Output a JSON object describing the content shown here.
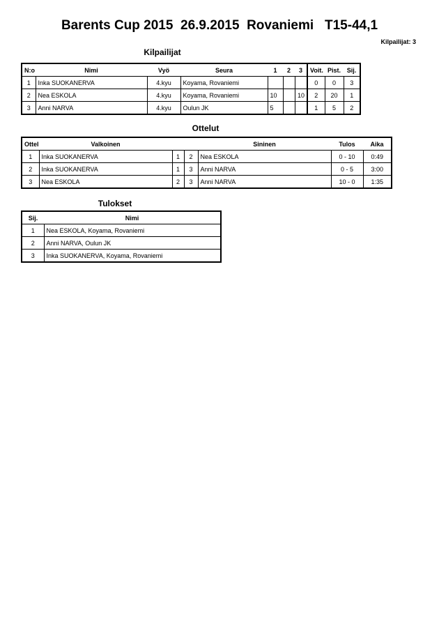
{
  "header": {
    "title": "Barents Cup 2015  26.9.2015  Rovaniemi   T15-44,1",
    "count_label": "Kilpailijat: 3"
  },
  "competitors": {
    "title": "Kilpailijat",
    "columns": [
      "N:o",
      "Nimi",
      "Vyö",
      "Seura",
      "1",
      "2",
      "3",
      "Voit.",
      "Pist.",
      "Sij."
    ],
    "rows": [
      [
        "1",
        "Inka SUOKANERVA",
        "4.kyu",
        "Koyama, Rovaniemi",
        "",
        "",
        "",
        "0",
        "0",
        "3"
      ],
      [
        "2",
        "Nea ESKOLA",
        "4.kyu",
        "Koyama, Rovaniemi",
        "10",
        "",
        "10",
        "2",
        "20",
        "1"
      ],
      [
        "3",
        "Anni NARVA",
        "4.kyu",
        "Oulun JK",
        "5",
        "",
        "",
        "1",
        "5",
        "2"
      ]
    ]
  },
  "matches": {
    "title": "Ottelut",
    "columns": [
      "Ottelu",
      "Valkoinen",
      "",
      "",
      "Sininen",
      "Tulos",
      "Aika"
    ],
    "rows": [
      [
        "1",
        "Inka SUOKANERVA",
        "1",
        "2",
        "Nea ESKOLA",
        "0 - 10",
        "0:49"
      ],
      [
        "2",
        "Inka SUOKANERVA",
        "1",
        "3",
        "Anni NARVA",
        "0 - 5",
        "3:00"
      ],
      [
        "3",
        "Nea ESKOLA",
        "2",
        "3",
        "Anni NARVA",
        "10 - 0",
        "1:35"
      ]
    ]
  },
  "results": {
    "title": "Tulokset",
    "columns": [
      "Sij.",
      "Nimi"
    ],
    "rows": [
      [
        "1",
        "Nea ESKOLA, Koyama, Rovaniemi"
      ],
      [
        "2",
        "Anni NARVA, Oulun JK"
      ],
      [
        "3",
        "Inka SUOKANERVA, Koyama, Rovaniemi"
      ]
    ]
  }
}
